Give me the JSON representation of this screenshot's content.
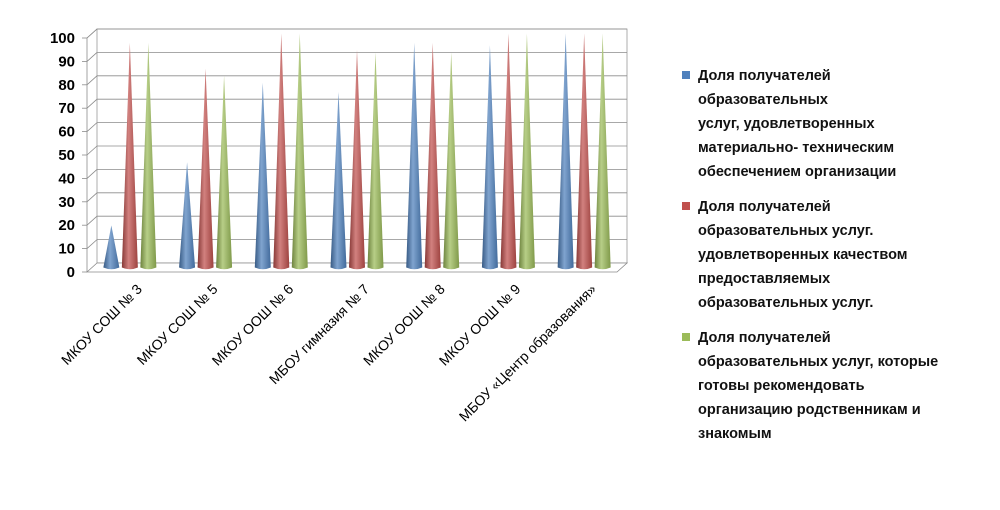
{
  "chart_data": {
    "type": "bar",
    "bar_shape": "cone",
    "categories": [
      "МКОУ СОШ № 3",
      "МКОУ СОШ № 5",
      "МКОУ ООШ № 6",
      "МБОУ гимназия № 7",
      "МКОУ  ООШ № 8",
      "МКОУ ООШ № 9",
      "МБОУ «Центр образования»"
    ],
    "series": [
      {
        "name": "Доля получателей\nобразовательных\nуслуг, удовлетворенных\nматериально- техническим\nобеспечением организации",
        "color": "#4F81BD",
        "values": [
          18,
          45,
          79,
          75,
          96,
          95,
          100
        ]
      },
      {
        "name": "Доля получателей\nобразовательных услуг.\nудовлетворенных качеством\nпредоставляемых\nобразовательных услуг.",
        "color": "#C0504D",
        "values": [
          96,
          85,
          100,
          93,
          96,
          100,
          100
        ]
      },
      {
        "name": "Доля получателей\nобразовательных услуг, которые\nготовы рекомендовать\nорганизацию родственникам и\nзнакомым",
        "color": "#9BBB59",
        "values": [
          96,
          82,
          100,
          92,
          92,
          100,
          100
        ]
      }
    ],
    "yticks": [
      "0",
      "10",
      "20",
      "30",
      "40",
      "50",
      "60",
      "70",
      "80",
      "90",
      "100"
    ],
    "ylim": [
      0,
      100
    ],
    "grid": true,
    "legend_position": "right"
  }
}
